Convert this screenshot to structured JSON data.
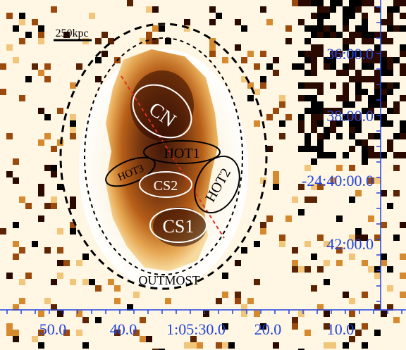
{
  "scale_bar": {
    "label": "250kpc"
  },
  "regions": [
    {
      "id": "cn",
      "label": "CN"
    },
    {
      "id": "hot1",
      "label": "HOT1"
    },
    {
      "id": "hot2",
      "label": "HOT2"
    },
    {
      "id": "hot3",
      "label": "HOT3"
    },
    {
      "id": "cs2",
      "label": "CS2"
    },
    {
      "id": "cs1",
      "label": "CS1"
    },
    {
      "id": "outmost",
      "label": "OUTMOST"
    }
  ],
  "dec_labels": [
    "36:00.0",
    "38:00.0",
    "-24:40:00.0",
    "42:00.0"
  ],
  "ra_labels": [
    "50.0",
    "40.0",
    "1:05:30.0",
    "20.0",
    "10.0"
  ],
  "colors": {
    "region_white": "#ffffff",
    "region_black": "#000000",
    "axis_blue": "#2244dd",
    "shock_line": "#e03020"
  }
}
